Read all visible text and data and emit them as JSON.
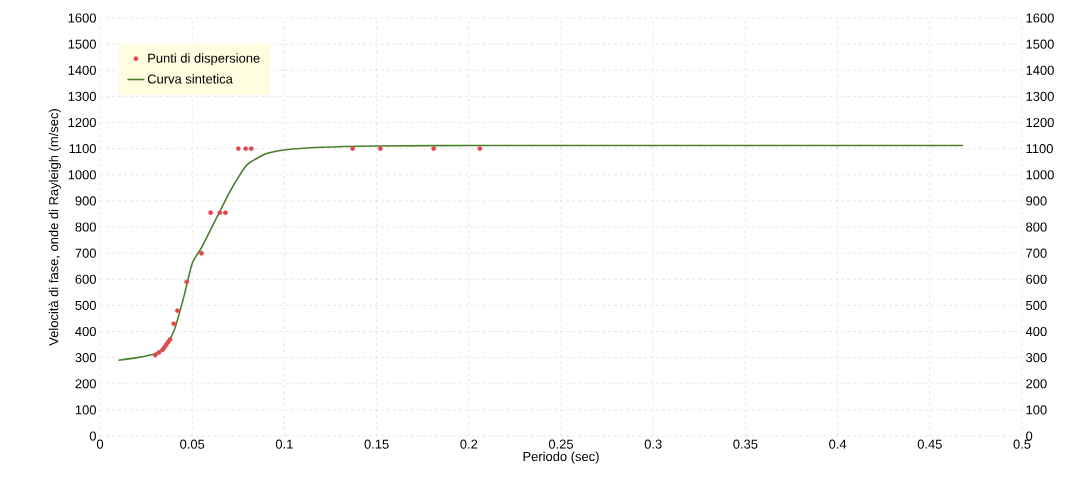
{
  "chart_data": {
    "type": "scatter",
    "xlabel": "Periodo (sec)",
    "ylabel": "Velocità di fase, onde di Rayleigh (m/sec)",
    "xlim": [
      0,
      0.5
    ],
    "xticks": [
      0,
      0.05,
      0.1,
      0.15,
      0.2,
      0.25,
      0.3,
      0.35,
      0.4,
      0.45,
      0.5
    ],
    "ylim": [
      0,
      1600
    ],
    "yticks": [
      0,
      100,
      200,
      300,
      400,
      500,
      600,
      700,
      800,
      900,
      1000,
      1100,
      1200,
      1300,
      1400,
      1500,
      1600
    ],
    "y2lim": [
      0,
      1600
    ],
    "y2ticks": [
      0,
      100,
      200,
      300,
      400,
      500,
      600,
      700,
      800,
      900,
      1000,
      1100,
      1200,
      1300,
      1400,
      1500,
      1600
    ],
    "grid": true,
    "legend": "top left",
    "series": [
      {
        "name": "Punti di dispersione",
        "type": "scatter",
        "marker": "circle",
        "color": "#e0474c",
        "x": [
          0.03,
          0.032,
          0.034,
          0.035,
          0.036,
          0.037,
          0.038,
          0.04,
          0.042,
          0.047,
          0.055,
          0.06,
          0.065,
          0.068,
          0.075,
          0.079,
          0.082,
          0.137,
          0.152,
          0.181,
          0.206
        ],
        "values": [
          310,
          320,
          330,
          340,
          350,
          360,
          370,
          430,
          480,
          590,
          700,
          855,
          855,
          855,
          1100,
          1100,
          1100,
          1100,
          1100,
          1100,
          1100
        ]
      },
      {
        "name": "Curva sintetica",
        "type": "line",
        "marker": "none",
        "line_style": "solid",
        "color": "#4a7f2a",
        "x": [
          0.01,
          0.02,
          0.03,
          0.035,
          0.04,
          0.045,
          0.05,
          0.055,
          0.06,
          0.065,
          0.07,
          0.075,
          0.08,
          0.09,
          0.1,
          0.12,
          0.15,
          0.2,
          0.3,
          0.4,
          0.468
        ],
        "values": [
          290,
          300,
          315,
          340,
          400,
          520,
          660,
          720,
          790,
          860,
          930,
          990,
          1040,
          1080,
          1095,
          1105,
          1110,
          1112,
          1112,
          1112,
          1112
        ]
      }
    ]
  }
}
